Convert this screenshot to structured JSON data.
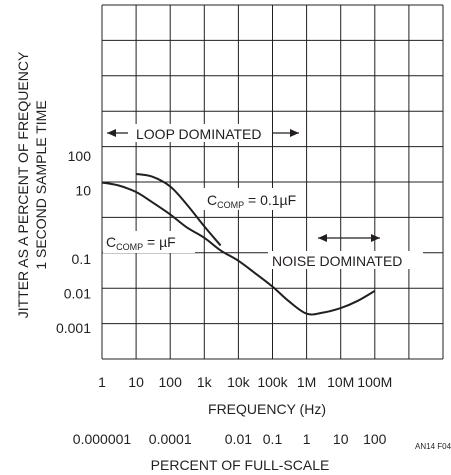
{
  "chart_data": {
    "type": "line",
    "title": "",
    "xlabel": "FREQUENCY (Hz)",
    "x2label": "PERCENT OF FULL-SCALE",
    "ylabel_line1": "JITTER AS A PERCENT OF FREQUENCY",
    "ylabel_line2": "1 SECOND SAMPLE TIME",
    "x_scale": "log",
    "y_scale": "log",
    "xlim": [
      1,
      100000000
    ],
    "ylim": [
      0.001,
      100
    ],
    "grid": true,
    "x_ticks": [
      {
        "value": 1,
        "label": "1"
      },
      {
        "value": 10,
        "label": "10"
      },
      {
        "value": 100,
        "label": "100"
      },
      {
        "value": 1000,
        "label": "1k"
      },
      {
        "value": 10000,
        "label": "10k"
      },
      {
        "value": 100000,
        "label": "100k"
      },
      {
        "value": 1000000,
        "label": "1M"
      },
      {
        "value": 10000000,
        "label": "10M"
      },
      {
        "value": 100000000,
        "label": "100M"
      }
    ],
    "x2_ticks": [
      {
        "value": 1,
        "label": "0.000001"
      },
      {
        "value": 100,
        "label": "0.0001"
      },
      {
        "value": 10000,
        "label": "0.01"
      },
      {
        "value": 100000,
        "label": "0.1"
      },
      {
        "value": 1000000,
        "label": "1"
      },
      {
        "value": 10000000,
        "label": "10"
      },
      {
        "value": 100000000,
        "label": "100"
      }
    ],
    "y_ticks": [
      {
        "value": 100,
        "label": "100"
      },
      {
        "value": 10,
        "label": "10"
      },
      {
        "value": 0.1,
        "label": "0.1"
      },
      {
        "value": 0.01,
        "label": "0.01"
      },
      {
        "value": 0.001,
        "label": "0.001"
      }
    ],
    "series": [
      {
        "name": "C_COMP = µF",
        "x": [
          1,
          3,
          10,
          30,
          100,
          300,
          1000,
          3000,
          10000,
          30000,
          100000,
          300000,
          1000000,
          3000000,
          10000000,
          30000000,
          100000000
        ],
        "y": [
          17,
          14,
          9,
          4.5,
          2,
          0.85,
          0.42,
          0.18,
          0.09,
          0.04,
          0.016,
          0.006,
          0.0026,
          0.0028,
          0.0038,
          0.006,
          0.012
        ]
      },
      {
        "name": "C_COMP = 0.1µF",
        "x": [
          10,
          30,
          100,
          300,
          1000,
          3000
        ],
        "y": [
          30,
          25,
          13,
          4,
          0.9,
          0.25
        ]
      }
    ],
    "annotations": {
      "loop_dominated": "LOOP DOMINATED",
      "noise_dominated": "NOISE DOMINATED",
      "ccomp_a_base": "C",
      "ccomp_a_sub": "COMP",
      "ccomp_a_val": " = 0.1µF",
      "ccomp_b_base": "C",
      "ccomp_b_sub": "COMP",
      "ccomp_b_val": " = µF"
    },
    "figure_id": "AN14 F04"
  }
}
